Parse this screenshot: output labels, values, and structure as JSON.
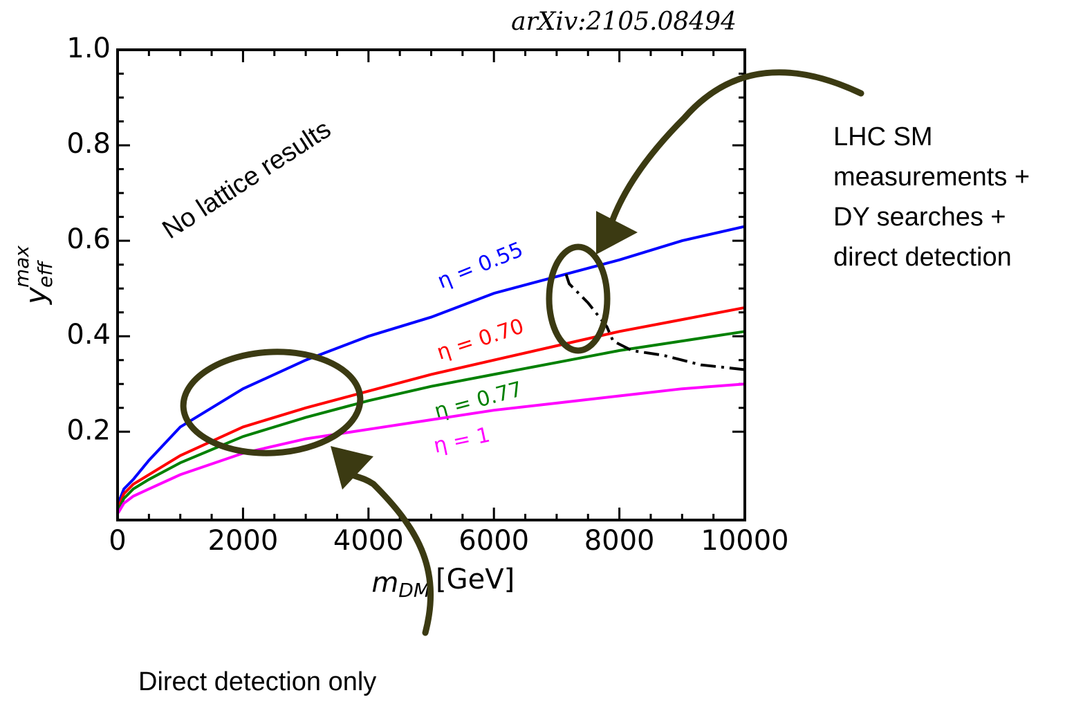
{
  "chart_data": {
    "type": "line",
    "title": "arXiv:2105.08494",
    "xlabel_main": "m",
    "xlabel_sub": "DM",
    "xlabel_unit": "[GeV]",
    "ylabel_main": "y",
    "ylabel_sub": "eff",
    "ylabel_sup": "max",
    "xlim": [
      0,
      10000
    ],
    "ylim": [
      0.015,
      1.0
    ],
    "xticks": [
      0,
      2000,
      4000,
      6000,
      8000,
      10000
    ],
    "yticks": [
      0.2,
      0.4,
      0.6,
      0.8,
      {
        "value": 1.0,
        "label": "1.0"
      }
    ],
    "x": [
      10,
      100,
      250,
      500,
      1000,
      2000,
      3000,
      4000,
      5000,
      6000,
      7000,
      8000,
      9000,
      10000
    ],
    "series": [
      {
        "name": "η = 0.55",
        "color": "#0000ff",
        "values": [
          0.05,
          0.08,
          0.1,
          0.14,
          0.21,
          0.29,
          0.35,
          0.4,
          0.44,
          0.49,
          0.525,
          0.56,
          0.6,
          0.63
        ]
      },
      {
        "name": "η = 0.70",
        "color": "#ff0000",
        "values": [
          0.04,
          0.07,
          0.09,
          0.11,
          0.15,
          0.21,
          0.25,
          0.285,
          0.32,
          0.35,
          0.38,
          0.41,
          0.435,
          0.46
        ]
      },
      {
        "name": "η = 0.77",
        "color": "#008000",
        "values": [
          0.035,
          0.06,
          0.08,
          0.1,
          0.135,
          0.19,
          0.23,
          0.265,
          0.295,
          0.32,
          0.345,
          0.37,
          0.39,
          0.41
        ]
      },
      {
        "name": "η = 1",
        "color": "#ff00ff",
        "values": [
          0.03,
          0.05,
          0.065,
          0.08,
          0.11,
          0.155,
          0.185,
          0.205,
          0.225,
          0.245,
          0.26,
          0.275,
          0.29,
          0.3
        ]
      }
    ],
    "bound": {
      "color": "#000000",
      "x": [
        7150,
        7200,
        7500,
        7800,
        7900,
        8200,
        8700,
        9300,
        10000
      ],
      "values": [
        0.53,
        0.51,
        0.47,
        0.42,
        0.39,
        0.37,
        0.36,
        0.34,
        0.33
      ]
    },
    "annotations": [
      "No lattice results",
      "Direct detection only"
    ],
    "side_note": [
      "LHC SM",
      "measurements +",
      "DY searches +",
      "direct detection"
    ]
  }
}
